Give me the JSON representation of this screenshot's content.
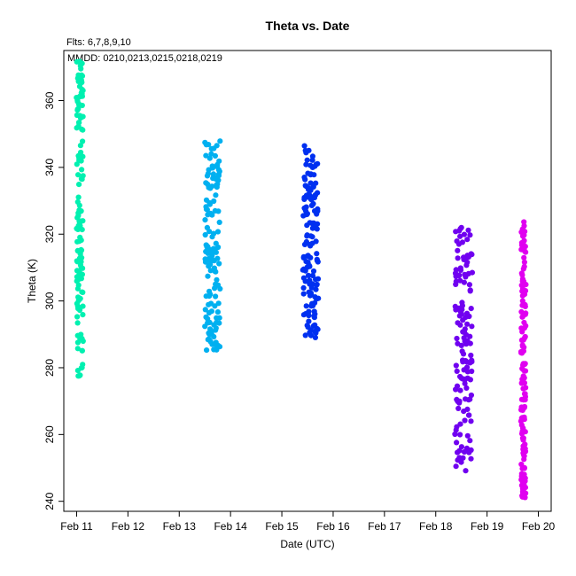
{
  "chart_data": {
    "type": "scatter",
    "title": "Theta  vs. Date",
    "flts_note": "Flts: 6,7,8,9,10",
    "mmdd_note": "MMDD: 0210,0213,0215,0218,0219",
    "xlabel": "Date (UTC)",
    "ylabel": "Theta (K)",
    "xlim": [
      "Feb 10 18:00",
      "Feb 20 06:00"
    ],
    "ylim": [
      237,
      375
    ],
    "x_ticks": [
      "Feb 11",
      "Feb 12",
      "Feb 13",
      "Feb 14",
      "Feb 15",
      "Feb 16",
      "Feb 17",
      "Feb 18",
      "Feb 19",
      "Feb 20"
    ],
    "y_ticks": [
      240,
      260,
      280,
      300,
      320,
      340,
      360
    ],
    "grid": false,
    "series": [
      {
        "flight": "6",
        "mmdd": "0210",
        "color": "#00f0b0",
        "t_start": "Feb 11 00:00",
        "t_end": "Feb 11 03:00",
        "theta_min": 277,
        "theta_max": 372
      },
      {
        "flight": "7",
        "mmdd": "0213",
        "color": "#00b0f0",
        "t_start": "Feb 13 12:00",
        "t_end": "Feb 13 19:00",
        "theta_min": 285,
        "theta_max": 348
      },
      {
        "flight": "8",
        "mmdd": "0215",
        "color": "#0030f0",
        "t_start": "Feb 15 10:00",
        "t_end": "Feb 15 17:00",
        "theta_min": 289,
        "theta_max": 347
      },
      {
        "flight": "9",
        "mmdd": "0218",
        "color": "#7000f0",
        "t_start": "Feb 18 09:00",
        "t_end": "Feb 18 17:00",
        "theta_min": 249,
        "theta_max": 324
      },
      {
        "flight": "10",
        "mmdd": "0219",
        "color": "#e000f0",
        "t_start": "Feb 19 16:00",
        "t_end": "Feb 19 18:00",
        "theta_min": 241,
        "theta_max": 324
      }
    ]
  }
}
